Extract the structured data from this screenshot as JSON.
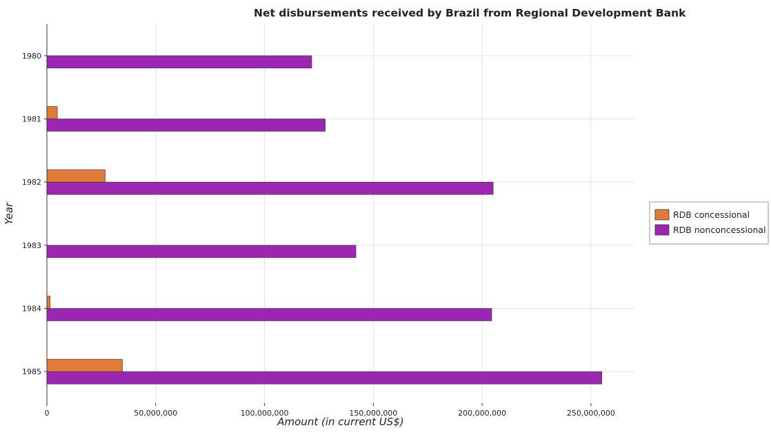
{
  "chart_data": {
    "type": "bar",
    "orientation": "horizontal",
    "title": "Net disbursements received by Brazil from Regional Development Bank",
    "xlabel": "Amount (in current US$)",
    "ylabel": "Year",
    "categories": [
      "1980",
      "1981",
      "1982",
      "1983",
      "1984",
      "1985"
    ],
    "series": [
      {
        "name": "RDB concessional",
        "color": "#e07b39",
        "values": [
          0,
          4800000,
          26800000,
          0,
          1500000,
          34700000
        ]
      },
      {
        "name": "RDB nonconcessional",
        "color": "#9b27b0",
        "values": [
          121700000,
          127900000,
          205100000,
          142000000,
          204400000,
          255000000
        ]
      }
    ],
    "xlim": [
      0,
      270000000
    ],
    "xticks": [
      0,
      50000000,
      100000000,
      150000000,
      200000000,
      250000000
    ],
    "xtick_labels": [
      "0",
      "50,000,000",
      "100,000,000",
      "150,000,000",
      "200,000,000",
      "250,000,000"
    ],
    "grid": true,
    "legend_position": "right"
  }
}
